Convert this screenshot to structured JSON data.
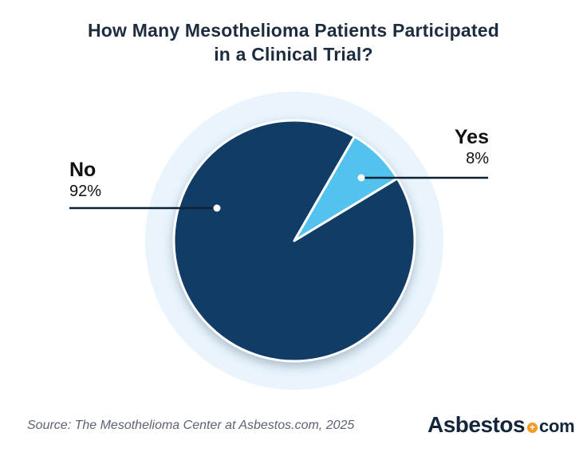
{
  "title": {
    "line1": "How Many Mesothelioma Patients Participated",
    "line2": "in a Clinical Trial?",
    "color": "#1d2c3e"
  },
  "chart_data": {
    "type": "pie",
    "title": "How Many Mesothelioma Patients Participated in a Clinical Trial?",
    "slices": [
      {
        "label": "Yes",
        "value_pct": 8,
        "display_pct": "8%",
        "color": "#54c2ee"
      },
      {
        "label": "No",
        "value_pct": 92,
        "display_pct": "92%",
        "color": "#113c66"
      }
    ],
    "start_angle_deg": 30,
    "slice_gap_stroke": "#ffffff",
    "halo_color": "#e9f4fc",
    "callout_line_color": "#0e2233",
    "legend_position": "callout-labels"
  },
  "footer": {
    "source_text": "Source: The Mesothelioma Center at Asbestos.com, 2025",
    "source_color": "#5b6473",
    "logo": {
      "word": "Asbestos",
      "tld": "com",
      "plus_glyph": "+",
      "plus_color": "#f59a23",
      "text_color": "#15263a"
    }
  }
}
